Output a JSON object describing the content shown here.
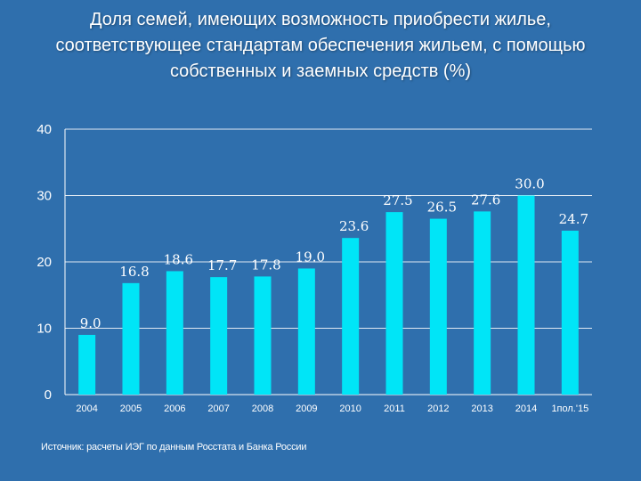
{
  "title": "Доля семей, имеющих возможность приобрести жилье, соответствующее стандартам обеспечения жильем, с помощью собственных и заемных средств (%)",
  "source": "Источник: расчеты ИЭГ по данным Росстата и Банка России",
  "colors": {
    "background": "#2f6fad",
    "bar": "#00e5f7",
    "text": "#ffffff",
    "axis": "#ffffff",
    "grid": "#ffffff"
  },
  "chart_data": {
    "type": "bar",
    "categories": [
      "2004",
      "2005",
      "2006",
      "2007",
      "2008",
      "2009",
      "2010",
      "2011",
      "2012",
      "2013",
      "2014",
      "1пол.'15"
    ],
    "values": [
      9.0,
      16.8,
      18.6,
      17.7,
      17.8,
      19.0,
      23.6,
      27.5,
      26.5,
      27.6,
      30.0,
      24.7
    ],
    "data_labels": [
      "9.0",
      "16.8",
      "18.6",
      "17.7",
      "17.8",
      "19.0",
      "23.6",
      "27.5",
      "26.5",
      "27.6",
      "30.0",
      "24.7"
    ],
    "ylim": [
      0,
      40
    ],
    "yticks": [
      "0",
      "10",
      "20",
      "30",
      "40"
    ],
    "grid": true,
    "legend": false
  }
}
